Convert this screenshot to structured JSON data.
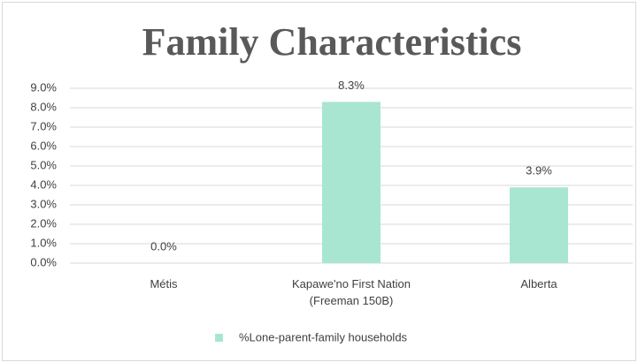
{
  "chart_data": {
    "type": "bar",
    "title": "Family Characteristics",
    "categories": [
      "Métis",
      "Kapawe'no First Nation (Freeman 150B)",
      "Alberta"
    ],
    "series": [
      {
        "name": "%Lone-parent-family households",
        "color": "#a9e6d2",
        "values": [
          0,
          8.3,
          3.9
        ],
        "value_labels": [
          "0.0%",
          "8.3%",
          "3.9%"
        ]
      }
    ],
    "ylim": [
      0,
      9
    ],
    "yticks": [
      {
        "value": 0,
        "label": "0.0%"
      },
      {
        "value": 1,
        "label": "1.0%"
      },
      {
        "value": 2,
        "label": "2.0%"
      },
      {
        "value": 3,
        "label": "3.0%"
      },
      {
        "value": 4,
        "label": "4.0%"
      },
      {
        "value": 5,
        "label": "5.0%"
      },
      {
        "value": 6,
        "label": "6.0%"
      },
      {
        "value": 7,
        "label": "7.0%"
      },
      {
        "value": 8,
        "label": "8.0%"
      },
      {
        "value": 9,
        "label": "9.0%"
      }
    ],
    "grid": true,
    "legend": "bottom"
  }
}
